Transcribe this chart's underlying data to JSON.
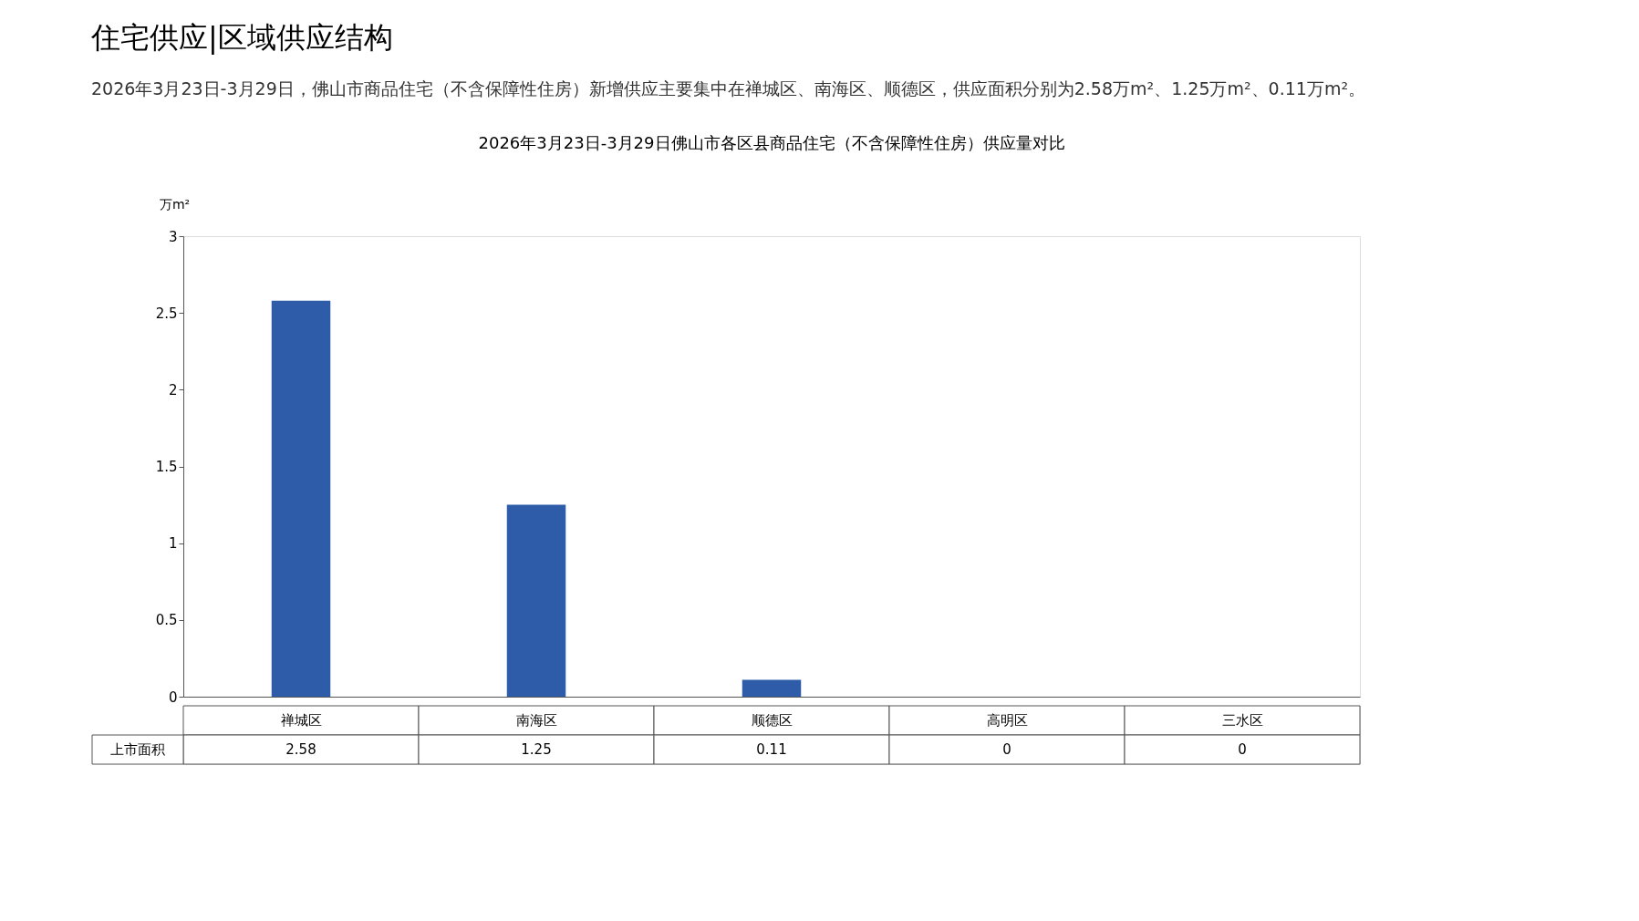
{
  "chart_data": {
    "type": "bar",
    "title": "住宅供应|区域供应结构",
    "subtitle": "2026年3月23日-3月29日，佛山市商品住宅（不含保障性住房）新增供应主要集中在禅城区、南海区、顺德区，供应面积分别为2.58万m²、1.25万m²、0.11万m²。",
    "annotations": [
      "2026年3月23日-3月29日佛山市各区县商品住宅（不含保障性住房）供应量对比"
    ],
    "ylabel": "万m²",
    "categories": [
      "禅城区",
      "南海区",
      "顺德区",
      "高明区",
      "三水区"
    ],
    "series": [
      {
        "name": "上市面积",
        "color": "#2e5ca8",
        "values": [
          2.58,
          1.25,
          0.11,
          0,
          0
        ]
      }
    ],
    "ylim": [
      0,
      3
    ],
    "yticks": [
      0,
      {
        "value": 0.5,
        "label": "0.5"
      },
      1,
      {
        "value": 1.5,
        "label": "1.5"
      },
      2,
      {
        "value": 2.5,
        "label": "2.5"
      },
      3
    ],
    "grid": false,
    "data_labels": true
  }
}
